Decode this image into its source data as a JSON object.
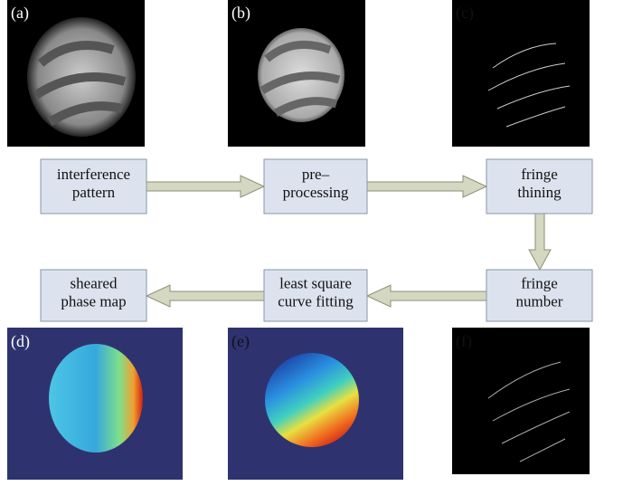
{
  "panels": [
    {
      "label": "(a)"
    },
    {
      "label": "(b)"
    },
    {
      "label": "(c)"
    },
    {
      "label": "(d)"
    },
    {
      "label": "(e)"
    },
    {
      "label": "(f)"
    }
  ],
  "nodes": [
    {
      "lines": [
        "interference",
        "pattern"
      ]
    },
    {
      "lines": [
        "pre–",
        "processing"
      ]
    },
    {
      "lines": [
        "fringe",
        "thining"
      ]
    },
    {
      "lines": [
        "fringe",
        "number"
      ]
    },
    {
      "lines": [
        "least square",
        "curve fitting"
      ]
    },
    {
      "lines": [
        "sheared",
        "phase map"
      ]
    }
  ]
}
